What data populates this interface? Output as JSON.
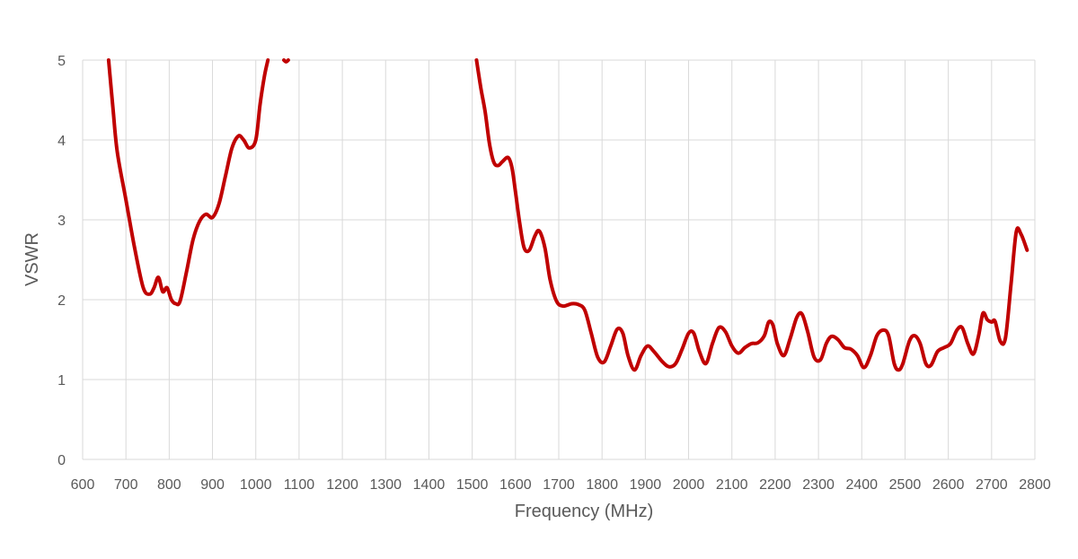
{
  "chart_data": {
    "type": "line",
    "title": "",
    "xlabel": "Frequency (MHz)",
    "ylabel": "VSWR",
    "xlim": [
      600,
      2800
    ],
    "ylim": [
      0,
      5
    ],
    "x_ticks": [
      "600",
      "700",
      "800",
      "900",
      "1000",
      "1100",
      "1200",
      "1300",
      "1400",
      "1500",
      "1600",
      "1700",
      "1800",
      "1900",
      "2000",
      "2100",
      "2200",
      "2300",
      "2400",
      "2500",
      "2600",
      "2700",
      "2800"
    ],
    "y_ticks": [
      "0",
      "1",
      "2",
      "3",
      "4",
      "5"
    ],
    "grid": true,
    "legend": "none",
    "series": [
      {
        "name": "VSWR",
        "color": "#C00000",
        "segments": [
          [
            [
              660,
              5.0
            ],
            [
              670,
              4.4
            ],
            [
              680,
              3.85
            ],
            [
              700,
              3.25
            ],
            [
              720,
              2.65
            ],
            [
              740,
              2.15
            ],
            [
              755,
              2.07
            ],
            [
              765,
              2.15
            ],
            [
              775,
              2.28
            ],
            [
              785,
              2.1
            ],
            [
              795,
              2.15
            ],
            [
              805,
              2.0
            ],
            [
              815,
              1.95
            ],
            [
              825,
              1.98
            ],
            [
              840,
              2.35
            ],
            [
              855,
              2.75
            ],
            [
              870,
              2.98
            ],
            [
              885,
              3.07
            ],
            [
              900,
              3.03
            ],
            [
              915,
              3.2
            ],
            [
              930,
              3.55
            ],
            [
              945,
              3.9
            ],
            [
              960,
              4.05
            ],
            [
              972,
              4.0
            ],
            [
              985,
              3.9
            ],
            [
              1000,
              4.0
            ],
            [
              1010,
              4.45
            ],
            [
              1020,
              4.8
            ],
            [
              1028,
              5.0
            ]
          ],
          [
            [
              1065,
              5.0
            ],
            [
              1070,
              4.98
            ],
            [
              1075,
              5.0
            ]
          ],
          [
            [
              1510,
              5.0
            ],
            [
              1520,
              4.65
            ],
            [
              1530,
              4.35
            ],
            [
              1540,
              3.95
            ],
            [
              1550,
              3.72
            ],
            [
              1560,
              3.68
            ],
            [
              1570,
              3.73
            ],
            [
              1583,
              3.78
            ],
            [
              1592,
              3.65
            ],
            [
              1600,
              3.35
            ],
            [
              1610,
              2.95
            ],
            [
              1620,
              2.65
            ],
            [
              1632,
              2.62
            ],
            [
              1645,
              2.8
            ],
            [
              1655,
              2.86
            ],
            [
              1668,
              2.65
            ],
            [
              1680,
              2.25
            ],
            [
              1695,
              1.98
            ],
            [
              1710,
              1.92
            ],
            [
              1730,
              1.95
            ],
            [
              1745,
              1.94
            ],
            [
              1760,
              1.87
            ],
            [
              1775,
              1.58
            ],
            [
              1790,
              1.28
            ],
            [
              1805,
              1.22
            ],
            [
              1820,
              1.42
            ],
            [
              1835,
              1.63
            ],
            [
              1848,
              1.58
            ],
            [
              1860,
              1.3
            ],
            [
              1875,
              1.12
            ],
            [
              1890,
              1.3
            ],
            [
              1905,
              1.42
            ],
            [
              1920,
              1.35
            ],
            [
              1940,
              1.22
            ],
            [
              1955,
              1.16
            ],
            [
              1970,
              1.2
            ],
            [
              1985,
              1.38
            ],
            [
              2000,
              1.58
            ],
            [
              2012,
              1.58
            ],
            [
              2025,
              1.35
            ],
            [
              2040,
              1.2
            ],
            [
              2055,
              1.45
            ],
            [
              2070,
              1.65
            ],
            [
              2085,
              1.6
            ],
            [
              2100,
              1.42
            ],
            [
              2115,
              1.33
            ],
            [
              2130,
              1.4
            ],
            [
              2145,
              1.45
            ],
            [
              2160,
              1.46
            ],
            [
              2175,
              1.55
            ],
            [
              2185,
              1.72
            ],
            [
              2195,
              1.68
            ],
            [
              2205,
              1.45
            ],
            [
              2220,
              1.3
            ],
            [
              2235,
              1.52
            ],
            [
              2250,
              1.78
            ],
            [
              2262,
              1.82
            ],
            [
              2275,
              1.6
            ],
            [
              2290,
              1.28
            ],
            [
              2305,
              1.25
            ],
            [
              2318,
              1.45
            ],
            [
              2330,
              1.54
            ],
            [
              2345,
              1.5
            ],
            [
              2360,
              1.4
            ],
            [
              2375,
              1.38
            ],
            [
              2390,
              1.3
            ],
            [
              2405,
              1.15
            ],
            [
              2420,
              1.3
            ],
            [
              2435,
              1.55
            ],
            [
              2450,
              1.62
            ],
            [
              2462,
              1.55
            ],
            [
              2475,
              1.2
            ],
            [
              2485,
              1.12
            ],
            [
              2495,
              1.2
            ],
            [
              2510,
              1.48
            ],
            [
              2522,
              1.55
            ],
            [
              2535,
              1.45
            ],
            [
              2548,
              1.2
            ],
            [
              2560,
              1.18
            ],
            [
              2575,
              1.35
            ],
            [
              2590,
              1.4
            ],
            [
              2605,
              1.45
            ],
            [
              2620,
              1.62
            ],
            [
              2632,
              1.65
            ],
            [
              2645,
              1.45
            ],
            [
              2658,
              1.32
            ],
            [
              2670,
              1.55
            ],
            [
              2680,
              1.83
            ],
            [
              2690,
              1.75
            ],
            [
              2700,
              1.72
            ],
            [
              2708,
              1.73
            ],
            [
              2720,
              1.48
            ],
            [
              2732,
              1.52
            ],
            [
              2745,
              2.2
            ],
            [
              2757,
              2.85
            ],
            [
              2768,
              2.82
            ],
            [
              2782,
              2.62
            ]
          ]
        ]
      }
    ]
  }
}
